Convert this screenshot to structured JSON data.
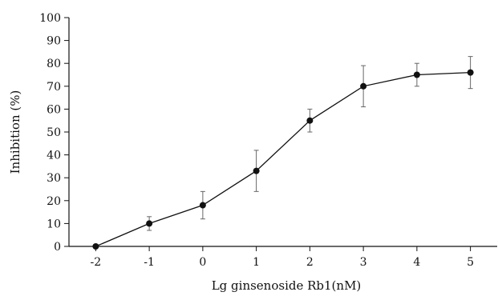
{
  "chart_data": {
    "type": "line",
    "title": "",
    "xlabel": "Lg ginsenoside Rb1(nM)",
    "ylabel": "Inhibition (%)",
    "x": [
      -2,
      -1,
      0,
      1,
      2,
      3,
      4,
      5
    ],
    "xlim": [
      -2.5,
      5.5
    ],
    "ylim": [
      0,
      100
    ],
    "x_ticks": [
      "-2",
      "-1",
      "0",
      "1",
      "2",
      "3",
      "4",
      "5"
    ],
    "y_ticks": [
      "0",
      "10",
      "20",
      "30",
      "40",
      "50",
      "60",
      "70",
      "80",
      "90",
      "100"
    ],
    "series": [
      {
        "values": [
          0,
          10,
          18,
          33,
          55,
          70,
          75,
          76
        ],
        "error": [
          0,
          3,
          6,
          9,
          5,
          9,
          5,
          7
        ],
        "marker": "circle",
        "color": "#111111"
      }
    ],
    "grid": false,
    "legend": "none"
  }
}
